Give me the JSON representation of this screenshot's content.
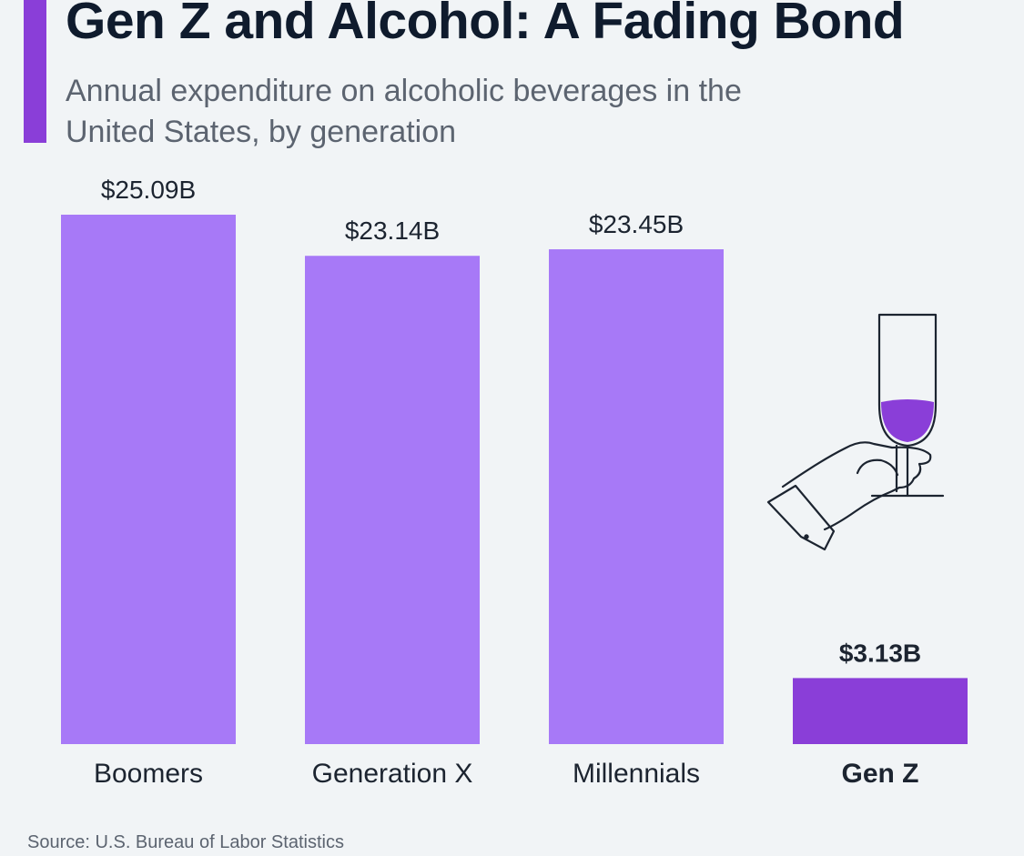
{
  "header": {
    "title": "Gen Z and Alcohol: A Fading Bond",
    "subtitle": "Annual expenditure on alcoholic beverages in the United States, by generation"
  },
  "source": "Source: U.S. Bureau of Labor Statistics",
  "icon": "hand-holding-wine-glass-icon",
  "colors": {
    "bar": "#a779f7",
    "highlight_bar": "#8a3ed8",
    "accent": "#8a3ed8",
    "background": "#f1f4f6"
  },
  "chart_data": {
    "type": "bar",
    "categories": [
      "Boomers",
      "Generation X",
      "Millennials",
      "Gen Z"
    ],
    "values": [
      25.09,
      23.14,
      23.45,
      3.13
    ],
    "value_labels": [
      "$25.09B",
      "$23.14B",
      "$23.45B",
      "$3.13B"
    ],
    "highlighted": "Gen Z",
    "title": "Gen Z and Alcohol: A Fading Bond",
    "subtitle": "Annual expenditure on alcoholic beverages in the United States, by generation",
    "xlabel": "",
    "ylabel": "",
    "ylim": [
      0,
      25.09
    ],
    "grid": false
  }
}
